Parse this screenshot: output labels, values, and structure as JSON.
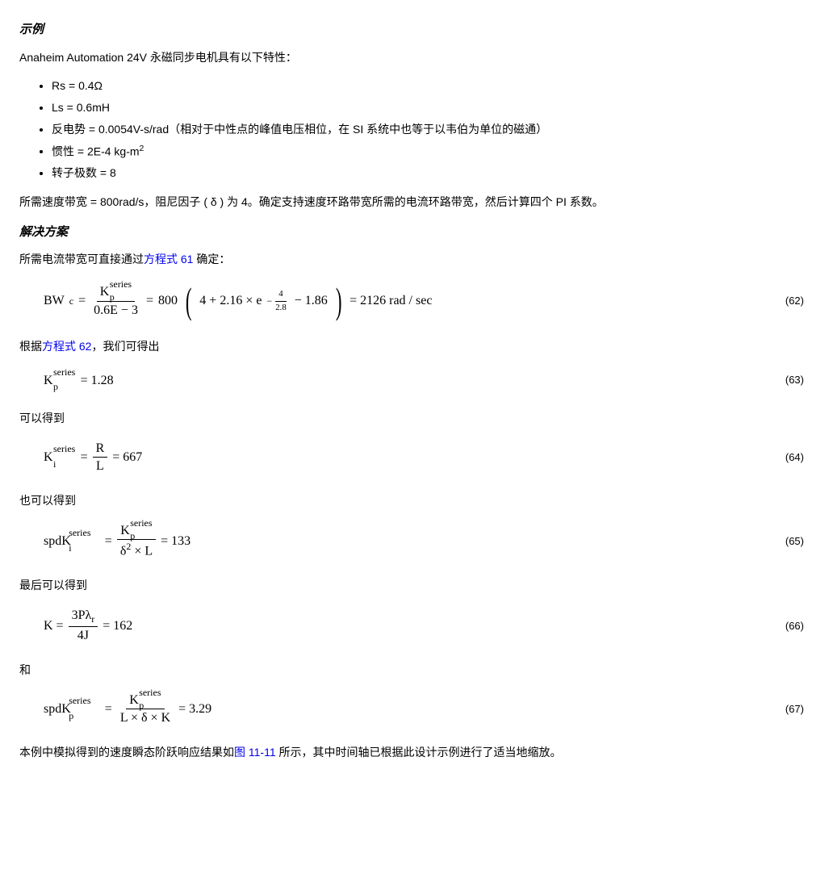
{
  "headings": {
    "example": "示例",
    "solution": "解决方案"
  },
  "intro": "Anaheim Automation 24V 永磁同步电机具有以下特性：",
  "specs": {
    "rs": "Rs = 0.4Ω",
    "ls": "Ls = 0.6mH",
    "backemf": "反电势 = 0.0054V-s/rad（相对于中性点的峰值电压相位，在 SI 系统中也等于以韦伯为单位的磁通）",
    "inertia_prefix": "惯性 = 2E-4 kg-m",
    "inertia_exp": "2",
    "poles": "转子极数 = 8"
  },
  "problem": "所需速度带宽 = 800rad/s，阻尼因子 ( δ ) 为 4。确定支持速度环路带宽所需的电流环路带宽，然后计算四个 PI 系数。",
  "sol": {
    "p1_pre": "所需电流带宽可直接通过",
    "p1_link": "方程式 61",
    "p1_post": " 确定：",
    "p2_pre": "根据",
    "p2_link": "方程式 62",
    "p2_post": "，我们可得出",
    "p3": "可以得到",
    "p4": "也可以得到",
    "p5": "最后可以得到",
    "p6": "和",
    "p7_pre": "本例中模拟得到的速度瞬态阶跃响应结果如",
    "p7_link": "图 11-11",
    "p7_post": " 所示，其中时间轴已根据此设计示例进行了适当地缩放。"
  },
  "eq62": {
    "lhs": "BW",
    "lhs_sub": "c",
    "denom": "0.6E − 3",
    "mult": "800",
    "inner": "4 + 2.16 × e",
    "exp_num": "4",
    "exp_den": "2.8",
    "inner_tail": " − 1.86",
    "rhs": "= 2126 rad / sec",
    "num": "(62)"
  },
  "eq63": {
    "kp_series": "series",
    "val": " = 1.28",
    "num": "(63)"
  },
  "eq64": {
    "pre": "K",
    "pre_sub": "i",
    "pre_sup": "series",
    "R": "R",
    "L": "L",
    "val": " = 667",
    "num": "(64)"
  },
  "eq65": {
    "lhs": "spdK",
    "lhs_sub": "i",
    "lhs_sup": "series",
    "denom_pre": "δ",
    "denom_exp": "2",
    "denom_tail": " × L",
    "val": " = 133",
    "num": "(65)"
  },
  "eq66": {
    "lhs": "K = ",
    "numtop": "3Pλ",
    "numtop_sub": "r",
    "numbot": "4J",
    "val": " = 162",
    "num": "(66)"
  },
  "eq67": {
    "lhs": "spdK",
    "lhs_sub": "p",
    "lhs_sup": "series",
    "denom": "L × δ × K",
    "val": " = 3.29",
    "num": "(67)"
  },
  "kp": {
    "K": "K",
    "p": "p",
    "series": "series"
  }
}
